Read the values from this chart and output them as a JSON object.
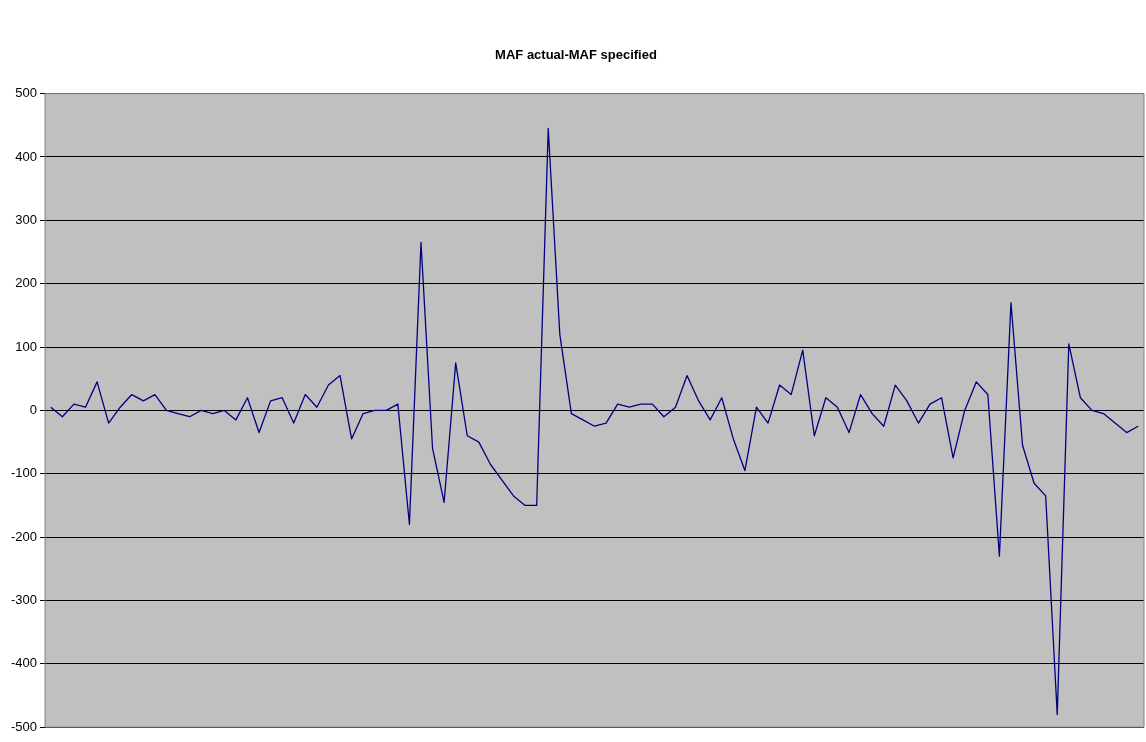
{
  "chart_data": {
    "type": "line",
    "title": "MAF actual-MAF specified",
    "categories": [
      null,
      null,
      null,
      null,
      null,
      null,
      null,
      null,
      null,
      null,
      null,
      null,
      null,
      null,
      null,
      null,
      null,
      null,
      null,
      null,
      null,
      null,
      null,
      null,
      null,
      null,
      null,
      null,
      null,
      null,
      null,
      null,
      null,
      null,
      null,
      null,
      null,
      null,
      null,
      null,
      null,
      null,
      null,
      null,
      null,
      null,
      null,
      null,
      null,
      null,
      null,
      null,
      null,
      null,
      null,
      null,
      null,
      null,
      null,
      null,
      null,
      null,
      null,
      null,
      null,
      null,
      null,
      null,
      null,
      null,
      null,
      null,
      null,
      null,
      null,
      null,
      null,
      null,
      null,
      null,
      null,
      null,
      null,
      null,
      null,
      null,
      null,
      null,
      null,
      null,
      null,
      null,
      null,
      null,
      null
    ],
    "series": [
      {
        "color": "#000080",
        "values": [
          5,
          -10,
          10,
          5,
          45,
          -20,
          5,
          25,
          15,
          25,
          0,
          -5,
          -10,
          0,
          -5,
          0,
          -15,
          20,
          -35,
          15,
          20,
          -20,
          25,
          5,
          40,
          55,
          -45,
          -5,
          0,
          0,
          10,
          -180,
          265,
          -60,
          -145,
          75,
          -40,
          -50,
          -85,
          -110,
          -135,
          -150,
          -150,
          445,
          120,
          -5,
          -15,
          -25,
          -20,
          10,
          5,
          10,
          10,
          -10,
          5,
          55,
          15,
          -15,
          20,
          -45,
          -95,
          5,
          -20,
          40,
          25,
          95,
          -40,
          20,
          5,
          -35,
          25,
          -5,
          -25,
          40,
          15,
          -20,
          10,
          20,
          -75,
          0,
          45,
          25,
          -230,
          170,
          -55,
          -115,
          -135,
          -480,
          105,
          20,
          0,
          -5,
          -20,
          -35,
          -25
        ]
      }
    ],
    "ylim": [
      -500,
      500
    ],
    "yticks": [
      -500,
      -400,
      -300,
      -200,
      -100,
      0,
      100,
      200,
      300,
      400,
      500
    ],
    "grid": "y",
    "legend": false,
    "marker": "none",
    "line_style": "solid",
    "tick_labels": "y"
  }
}
